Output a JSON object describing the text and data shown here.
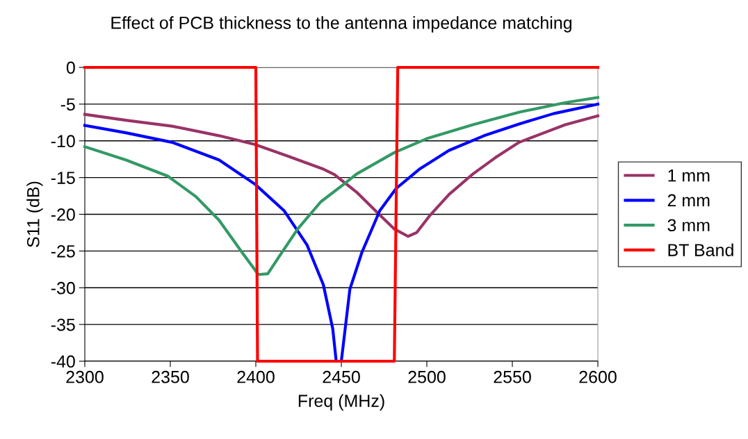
{
  "chart_data": {
    "type": "line",
    "title": "Effect of PCB thickness to the antenna impedance matching",
    "xlabel": "Freq (MHz)",
    "ylabel": "S11 (dB)",
    "xlim": [
      2300,
      2600
    ],
    "xticks": [
      2300,
      2350,
      2400,
      2450,
      2500,
      2550,
      2600
    ],
    "ylim": [
      -40,
      0
    ],
    "yticks": [
      0,
      -5,
      -10,
      -15,
      -20,
      -25,
      -30,
      -35,
      -40
    ],
    "grid": "y",
    "legend": "right",
    "marker": "none",
    "line_style": "solid",
    "series": [
      {
        "name": "1 mm",
        "color": "#993366",
        "x": [
          2300,
          2324,
          2351,
          2378.5,
          2399.5,
          2419,
          2439,
          2446,
          2459,
          2472.5,
          2481,
          2489,
          2494,
          2502,
          2513,
          2527,
          2540,
          2554,
          2567.5,
          2581,
          2600
        ],
        "values": [
          -6.4,
          -7.2,
          -8.0,
          -9.3,
          -10.5,
          -12.1,
          -13.8,
          -14.6,
          -17.0,
          -20.1,
          -22.0,
          -23.0,
          -22.5,
          -20.1,
          -17.3,
          -14.5,
          -12.3,
          -10.2,
          -9.0,
          -7.8,
          -6.6
        ]
      },
      {
        "name": "2 mm",
        "color": "#0000ff",
        "x": [
          2300,
          2324,
          2351,
          2378.5,
          2399.5,
          2416.5,
          2430,
          2439.5,
          2445,
          2447,
          2450,
          2455,
          2462,
          2472.5,
          2482,
          2496,
          2513,
          2533.5,
          2554,
          2574,
          2600
        ],
        "values": [
          -7.9,
          -8.9,
          -10.2,
          -12.6,
          -15.9,
          -19.5,
          -24.2,
          -29.6,
          -35.6,
          -40,
          -40,
          -30.2,
          -25.2,
          -19.5,
          -16.5,
          -13.8,
          -11.3,
          -9.3,
          -7.7,
          -6.3,
          -5.0
        ]
      },
      {
        "name": "3 mm",
        "color": "#339966",
        "x": [
          2300,
          2324,
          2348.5,
          2365,
          2378.5,
          2392,
          2401.5,
          2407,
          2413.5,
          2424.5,
          2438,
          2451.5,
          2459,
          2481,
          2500,
          2527,
          2554,
          2581,
          2600
        ],
        "values": [
          -10.8,
          -12.6,
          -14.8,
          -17.6,
          -20.8,
          -25.2,
          -28.2,
          -28.1,
          -25.8,
          -22.0,
          -18.3,
          -15.9,
          -14.5,
          -11.6,
          -9.7,
          -7.8,
          -6.1,
          -4.8,
          -4.1
        ]
      },
      {
        "name": "BT Band",
        "color": "#ff0000",
        "x": [
          2300,
          2400,
          2401,
          2481,
          2483,
          2600
        ],
        "values": [
          0,
          0,
          -40,
          -40,
          0,
          0
        ]
      }
    ]
  }
}
